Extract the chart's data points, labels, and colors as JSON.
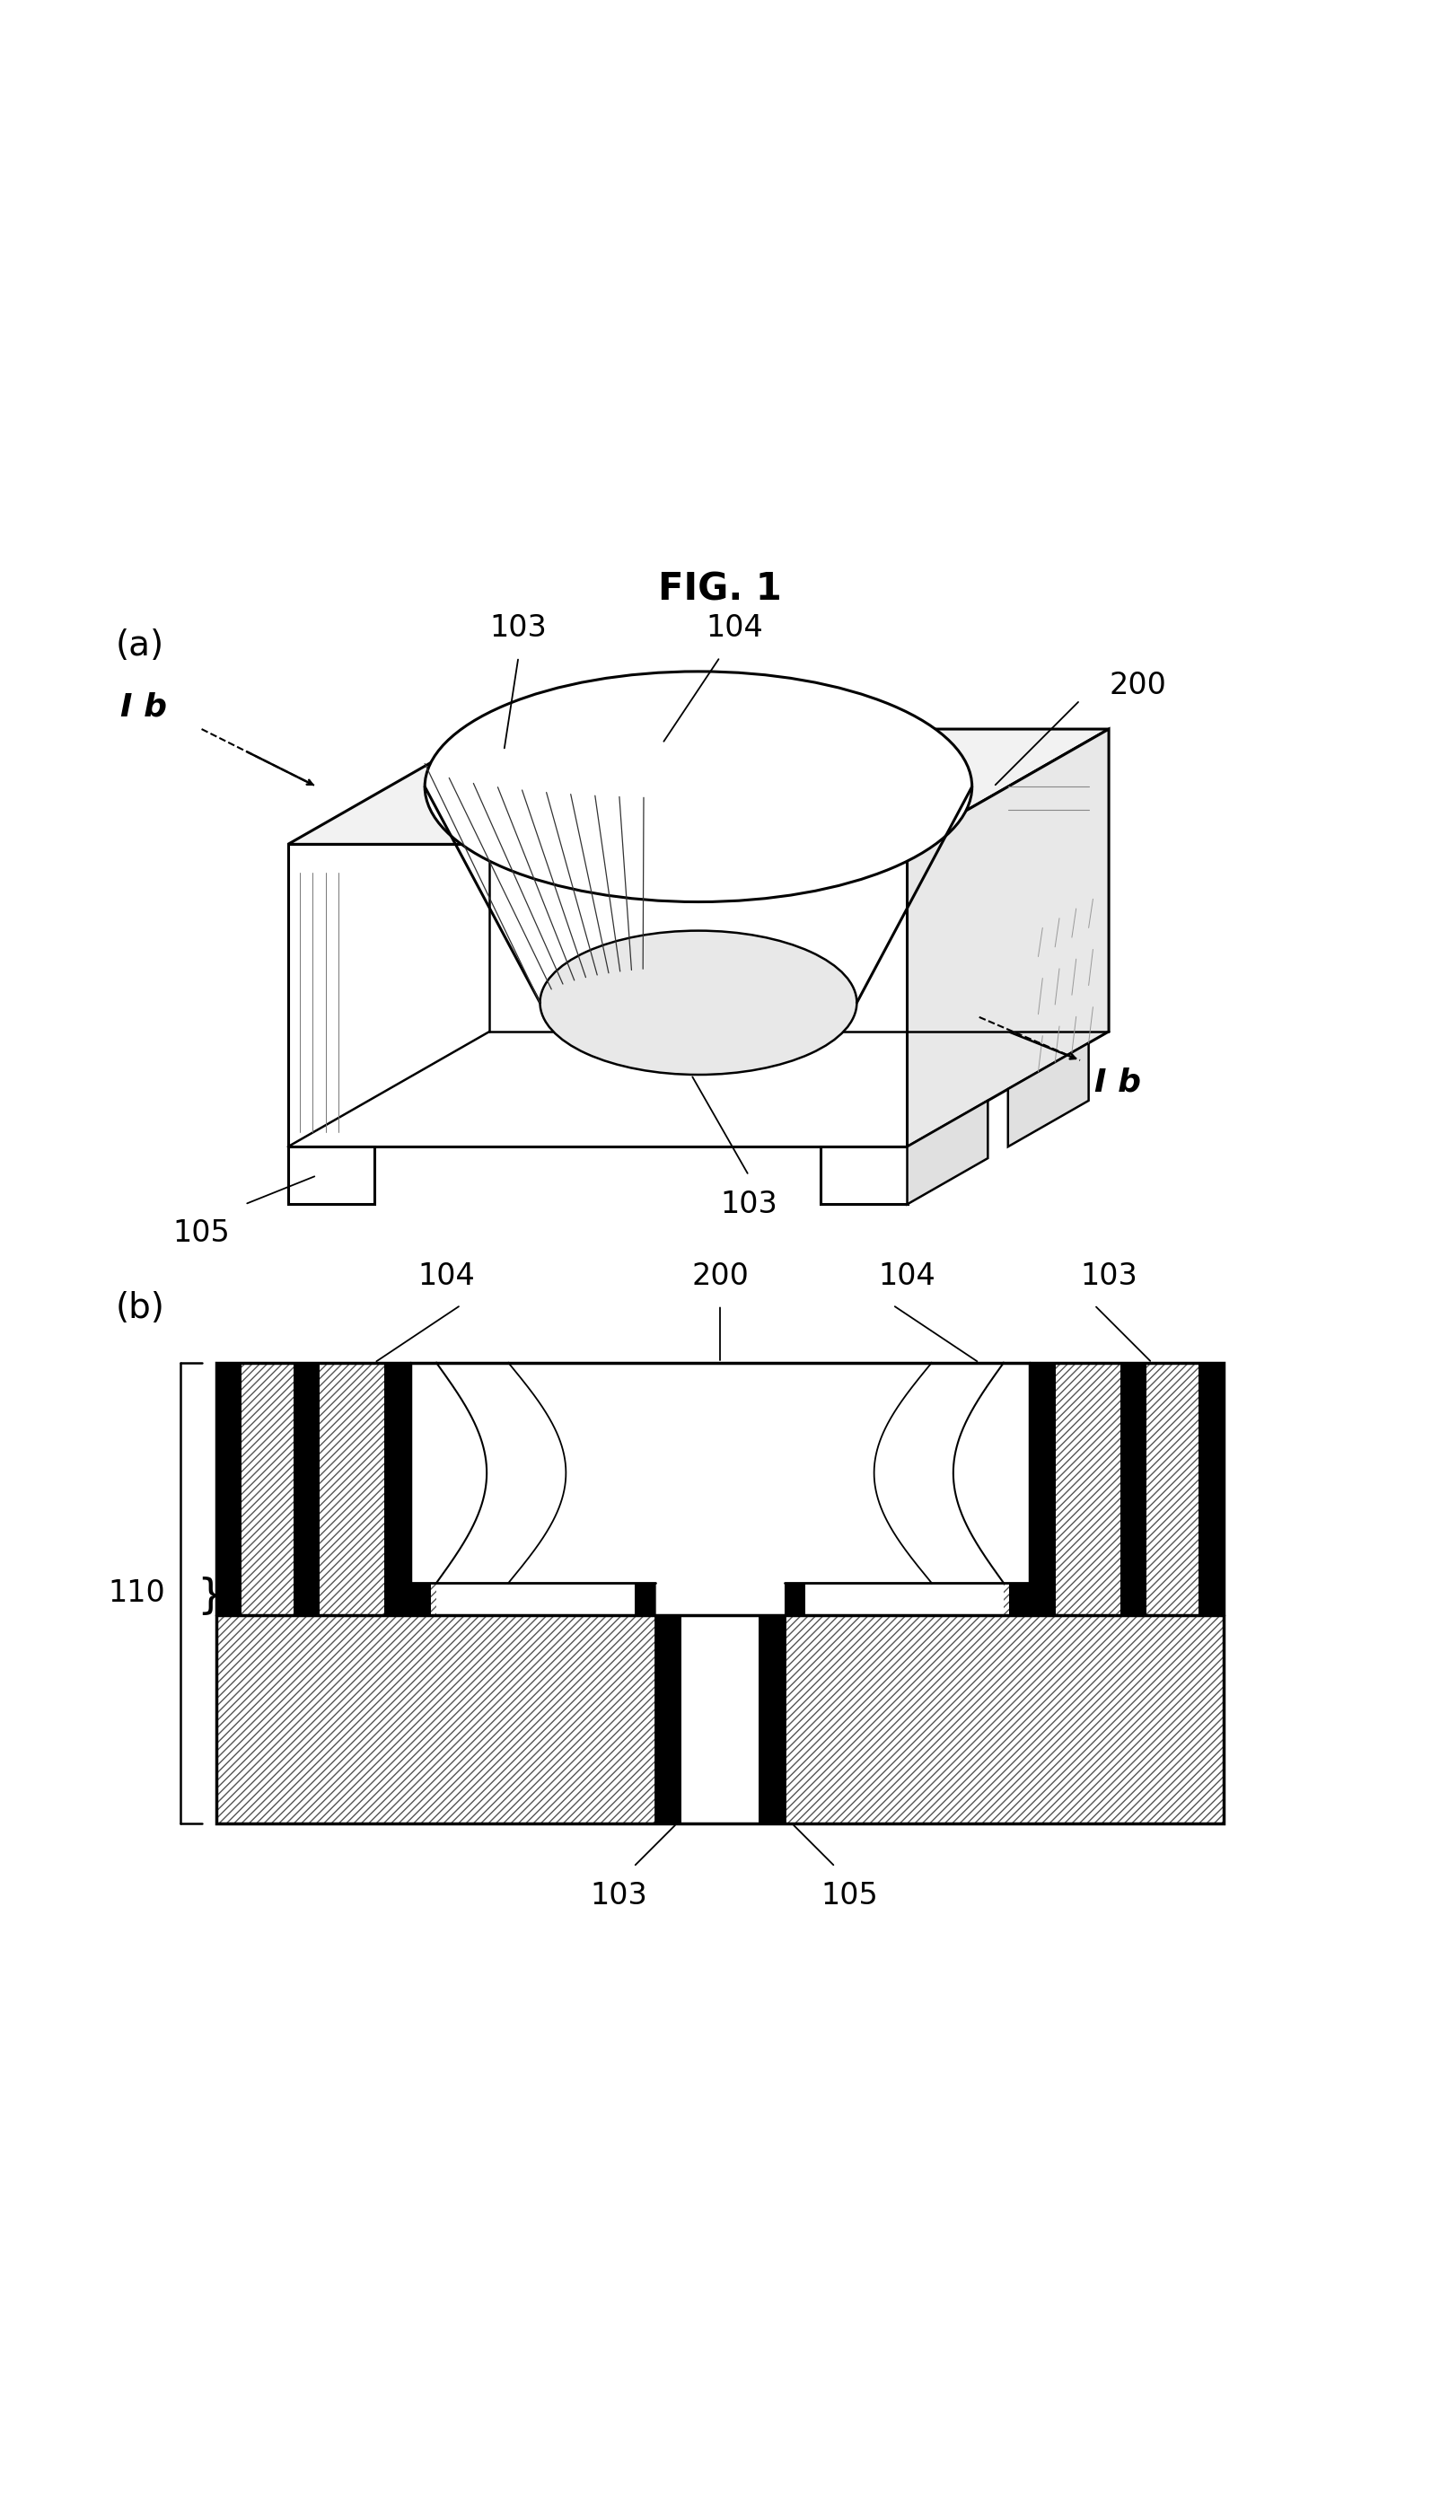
{
  "title": "FIG. 1",
  "title_fontsize": 30,
  "label_a": "(a)",
  "label_b": "(b)",
  "label_fontsize": 28,
  "ref_fontsize": 24,
  "background": "#ffffff",
  "fig_width": 16.04,
  "fig_height": 27.79
}
